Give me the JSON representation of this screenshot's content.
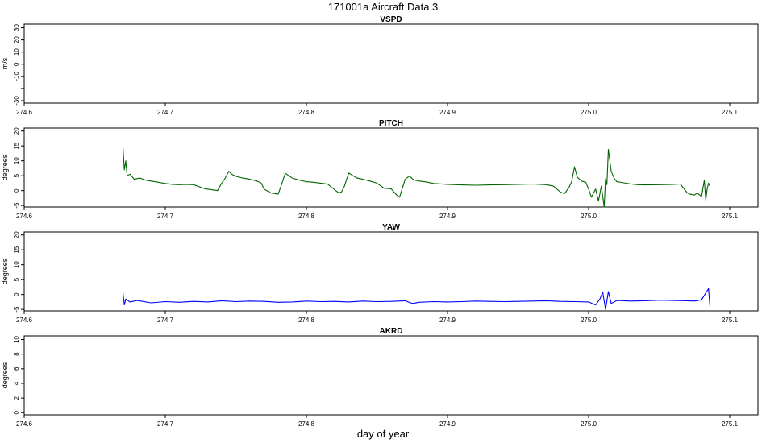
{
  "page": {
    "title": "171001a   Aircraft Data 3",
    "xlabel": "day of year"
  },
  "chart_data": [
    {
      "type": "line",
      "title": "VSPD",
      "ylabel": "m/s",
      "xlim": [
        274.6,
        275.12
      ],
      "ylim": [
        -32,
        33
      ],
      "xticks": [
        274.6,
        274.7,
        274.8,
        274.9,
        275.0,
        275.1
      ],
      "yticks": [
        -30,
        -20,
        -10,
        0,
        10,
        20,
        30
      ],
      "ytick_labels": [
        "-30",
        "",
        "-10",
        "0",
        "10",
        "20",
        "30"
      ],
      "series": []
    },
    {
      "type": "line",
      "title": "PITCH",
      "ylabel": "degrees",
      "xlim": [
        274.6,
        275.12
      ],
      "ylim": [
        -5.5,
        21
      ],
      "xticks": [
        274.6,
        274.7,
        274.8,
        274.9,
        275.0,
        275.1
      ],
      "yticks": [
        -5,
        0,
        5,
        10,
        15,
        20
      ],
      "ytick_labels": [
        "-5",
        "0",
        "5",
        "10",
        "15",
        "20"
      ],
      "series": [
        {
          "color": "#006400",
          "x": [
            274.67,
            274.671,
            274.672,
            274.673,
            274.675,
            274.678,
            274.682,
            274.686,
            274.69,
            274.695,
            274.7,
            274.705,
            274.71,
            274.715,
            274.72,
            274.728,
            274.736,
            274.737,
            274.74,
            274.742,
            274.745,
            274.747,
            274.75,
            274.755,
            274.76,
            274.765,
            274.768,
            274.77,
            274.775,
            274.78,
            274.782,
            274.785,
            274.79,
            274.795,
            274.8,
            274.805,
            274.81,
            274.815,
            274.82,
            274.823,
            274.825,
            274.827,
            274.83,
            274.833,
            274.836,
            274.84,
            274.845,
            274.85,
            274.855,
            274.86,
            274.864,
            274.866,
            274.868,
            274.87,
            274.873,
            274.876,
            274.88,
            274.885,
            274.89,
            274.9,
            274.91,
            274.92,
            274.93,
            274.94,
            274.95,
            274.96,
            274.97,
            274.975,
            274.98,
            274.983,
            274.986,
            274.988,
            274.99,
            274.992,
            274.995,
            274.998,
            275.0,
            275.002,
            275.005,
            275.007,
            275.009,
            275.011,
            275.012,
            275.013,
            275.014,
            275.016,
            275.018,
            275.02,
            275.025,
            275.03,
            275.035,
            275.04,
            275.05,
            275.06,
            275.065,
            275.07,
            275.072,
            275.075,
            275.077,
            275.08,
            275.082,
            275.083,
            275.084,
            275.085,
            275.086
          ],
          "y": [
            14.5,
            7,
            10,
            5,
            5.5,
            3.8,
            4.2,
            3.5,
            3.2,
            2.8,
            2.4,
            2.1,
            2.0,
            2.1,
            2.0,
            0.6,
            0.1,
            0,
            2.5,
            3.8,
            6.5,
            5.5,
            4.8,
            4.2,
            3.8,
            3.2,
            2.5,
            0.5,
            -0.8,
            -1.2,
            1.5,
            5.8,
            4.2,
            3.5,
            3.0,
            2.8,
            2.5,
            2.2,
            0.3,
            -0.8,
            -0.4,
            1.5,
            5.9,
            5.0,
            4.2,
            3.8,
            3.2,
            2.5,
            0.8,
            0.6,
            -1.5,
            -2.2,
            0.8,
            3.8,
            4.9,
            3.6,
            3.2,
            2.9,
            2.4,
            2.1,
            1.9,
            1.8,
            1.9,
            2.0,
            2.1,
            2.2,
            2.0,
            1.5,
            -0.5,
            -1.0,
            1.0,
            3.0,
            8.0,
            4.5,
            3.2,
            2.8,
            0.5,
            -2.2,
            0.5,
            -3.5,
            1.5,
            -5.5,
            4.0,
            2.0,
            13.8,
            6.5,
            4.2,
            3.0,
            2.6,
            2.2,
            2.0,
            1.9,
            2.0,
            2.1,
            2.2,
            -0.8,
            -1.2,
            -1.5,
            -0.8,
            -2.0,
            3.5,
            -3.2,
            0.5,
            2.5,
            1.5
          ]
        }
      ]
    },
    {
      "type": "line",
      "title": "YAW",
      "ylabel": "degrees",
      "xlim": [
        274.6,
        275.12
      ],
      "ylim": [
        -5.5,
        21
      ],
      "xticks": [
        274.6,
        274.7,
        274.8,
        274.9,
        275.0,
        275.1
      ],
      "yticks": [
        -5,
        0,
        5,
        10,
        15,
        20
      ],
      "ytick_labels": [
        "-5",
        "0",
        "5",
        "10",
        "15",
        "20"
      ],
      "series": [
        {
          "color": "#0000ff",
          "x": [
            274.67,
            274.671,
            274.672,
            274.675,
            274.68,
            274.69,
            274.7,
            274.71,
            274.72,
            274.73,
            274.74,
            274.75,
            274.76,
            274.77,
            274.78,
            274.79,
            274.8,
            274.81,
            274.82,
            274.83,
            274.84,
            274.85,
            274.86,
            274.87,
            274.875,
            274.88,
            274.89,
            274.9,
            274.91,
            274.92,
            274.93,
            274.94,
            274.95,
            274.96,
            274.97,
            274.98,
            274.99,
            275.0,
            275.005,
            275.008,
            275.01,
            275.012,
            275.014,
            275.016,
            275.02,
            275.03,
            275.04,
            275.05,
            275.06,
            275.07,
            275.075,
            275.08,
            275.083,
            275.085,
            275.086
          ],
          "y": [
            0.5,
            -3.5,
            -1.5,
            -2.5,
            -2.0,
            -2.8,
            -2.4,
            -2.6,
            -2.3,
            -2.5,
            -2.1,
            -2.4,
            -2.2,
            -2.3,
            -2.6,
            -2.5,
            -2.2,
            -2.4,
            -2.3,
            -2.5,
            -2.2,
            -2.4,
            -2.3,
            -2.1,
            -3.0,
            -2.6,
            -2.4,
            -2.5,
            -2.4,
            -2.2,
            -2.3,
            -2.4,
            -2.3,
            -2.2,
            -2.1,
            -2.3,
            -2.4,
            -2.5,
            -3.5,
            -1.5,
            0.8,
            -5.0,
            1.0,
            -3.0,
            -2.0,
            -2.2,
            -2.1,
            -1.9,
            -2.0,
            -2.1,
            -2.2,
            -1.8,
            0.5,
            2.0,
            -4.0
          ]
        }
      ]
    },
    {
      "type": "line",
      "title": "AKRD",
      "ylabel": "degrees",
      "xlim": [
        274.6,
        275.12
      ],
      "ylim": [
        -0.3,
        10.5
      ],
      "xticks": [
        274.6,
        274.7,
        274.8,
        274.9,
        275.0,
        275.1
      ],
      "yticks": [
        0,
        2,
        4,
        6,
        8,
        10
      ],
      "ytick_labels": [
        "0",
        "2",
        "4",
        "6",
        "8",
        "10"
      ],
      "series": []
    }
  ]
}
